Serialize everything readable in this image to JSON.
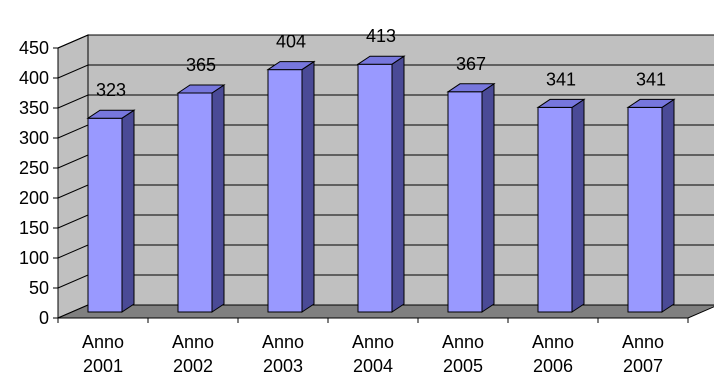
{
  "chart_data": {
    "type": "bar",
    "categories": [
      [
        "Anno",
        "2001"
      ],
      [
        "Anno",
        "2002"
      ],
      [
        "Anno",
        "2003"
      ],
      [
        "Anno",
        "2004"
      ],
      [
        "Anno",
        "2005"
      ],
      [
        "Anno",
        "2006"
      ],
      [
        "Anno",
        "2007"
      ]
    ],
    "values": [
      323,
      365,
      404,
      413,
      367,
      341,
      341
    ],
    "ylim": [
      0,
      450
    ],
    "yticks": [
      0,
      50,
      100,
      150,
      200,
      250,
      300,
      350,
      400,
      450
    ],
    "grid": true,
    "legend": "none",
    "three_d": true,
    "colors": {
      "bar_front": "#9999ff",
      "bar_top": "#7777dd",
      "bar_side": "#4a4a96",
      "wall": "#c0c0c0",
      "floor": "#808080",
      "grid": "#000000"
    }
  }
}
